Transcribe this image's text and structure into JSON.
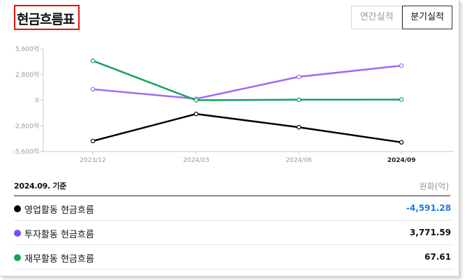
{
  "header": {
    "title": "현금흐름표",
    "tabs": [
      {
        "label": "연간실적",
        "active": false
      },
      {
        "label": "분기실적",
        "active": true
      }
    ]
  },
  "table": {
    "basis": "2024.09. 기준",
    "unit": "원화(억)",
    "rows": [
      {
        "label": "영업활동 현금흐름",
        "value": "-4,591.28",
        "color": "#000000",
        "value_color": "#1a7be6"
      },
      {
        "label": "투자활동 현금흐름",
        "value": "3,771.59",
        "color": "#7b4ff0",
        "value_color": "#111111"
      },
      {
        "label": "재무활동 현금흐름",
        "value": "67.61",
        "color": "#12a35c",
        "value_color": "#111111"
      }
    ]
  },
  "chart_data": {
    "type": "line",
    "categories": [
      "2023/12",
      "2024/03",
      "2024/06",
      "2024/09"
    ],
    "y_ticks": [
      "5,600억",
      "2,800억",
      "0",
      "-2,800억",
      "-5,600억"
    ],
    "y_tick_values": [
      5600,
      2800,
      0,
      -2800,
      -5600
    ],
    "ylim": [
      -5600,
      5600
    ],
    "grid": false,
    "series": [
      {
        "key": "operating",
        "color": "#000000",
        "values": [
          -4450,
          -1500,
          -2950,
          -4591.28
        ]
      },
      {
        "key": "investing",
        "color": "#9b6cf2",
        "values": [
          1200,
          150,
          2550,
          3771.59
        ]
      },
      {
        "key": "financing",
        "color": "#12a35c",
        "values": [
          4300,
          0,
          50,
          67.61
        ]
      }
    ]
  }
}
